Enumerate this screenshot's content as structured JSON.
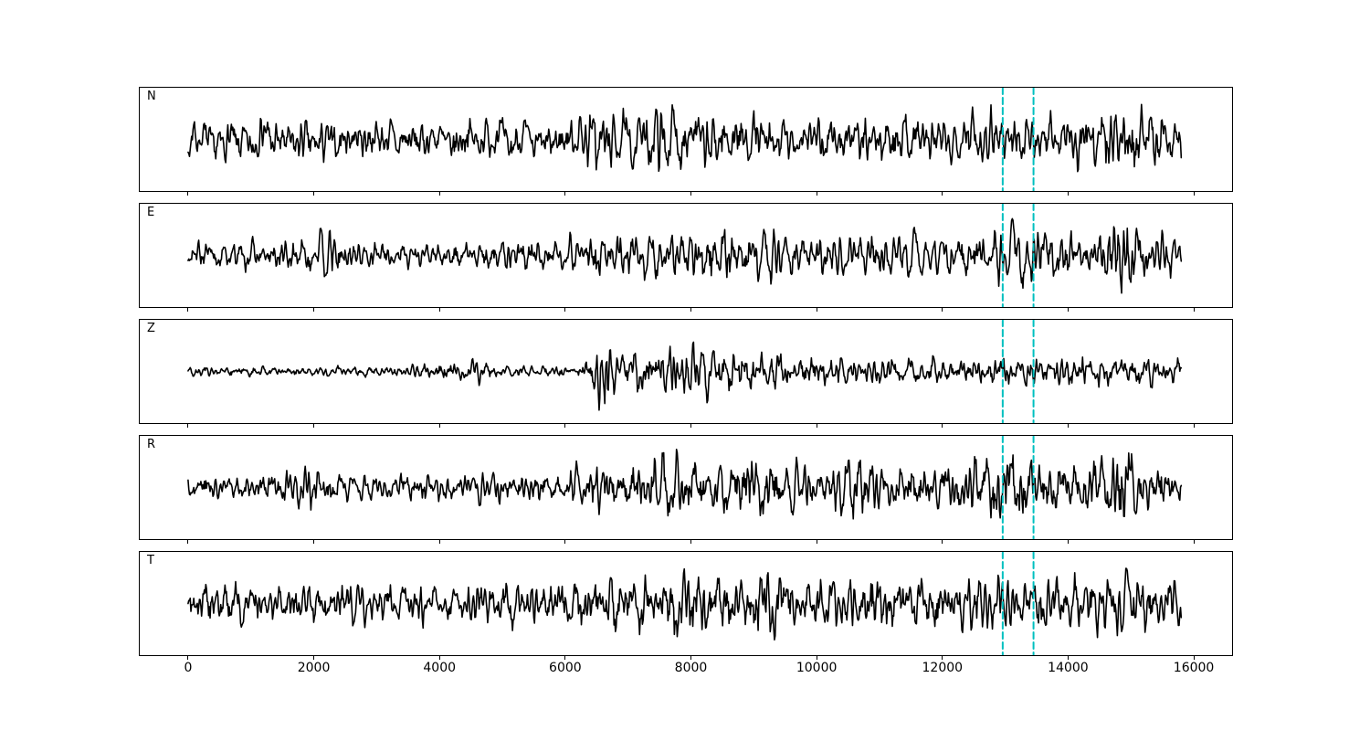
{
  "chart_data": {
    "type": "line",
    "title": "",
    "xlabel": "",
    "ylabel": "",
    "legend": null,
    "grid": false,
    "background": "#ffffff",
    "frame_color": "#000000",
    "panels": [
      {
        "label": "N",
        "seed": 7,
        "envelope": [
          [
            0,
            0.4
          ],
          [
            900,
            0.42
          ],
          [
            1300,
            0.55
          ],
          [
            1600,
            0.4
          ],
          [
            2100,
            0.58
          ],
          [
            2400,
            0.42
          ],
          [
            3200,
            0.45
          ],
          [
            4200,
            0.42
          ],
          [
            5200,
            0.45
          ],
          [
            6200,
            0.48
          ],
          [
            6500,
            0.8
          ],
          [
            6800,
            0.55
          ],
          [
            7300,
            0.6
          ],
          [
            7600,
            0.9
          ],
          [
            7900,
            0.6
          ],
          [
            8300,
            0.72
          ],
          [
            8800,
            0.55
          ],
          [
            9500,
            0.52
          ],
          [
            10500,
            0.52
          ],
          [
            11500,
            0.55
          ],
          [
            12300,
            0.55
          ],
          [
            12800,
            0.68
          ],
          [
            13200,
            0.72
          ],
          [
            13700,
            0.58
          ],
          [
            14300,
            0.62
          ],
          [
            14900,
            0.85
          ],
          [
            15300,
            0.7
          ],
          [
            15800,
            0.55
          ]
        ]
      },
      {
        "label": "E",
        "seed": 13,
        "envelope": [
          [
            0,
            0.28
          ],
          [
            1200,
            0.3
          ],
          [
            2350,
            0.55
          ],
          [
            2600,
            0.32
          ],
          [
            3800,
            0.3
          ],
          [
            5000,
            0.33
          ],
          [
            6000,
            0.38
          ],
          [
            6500,
            0.7
          ],
          [
            6900,
            0.48
          ],
          [
            7400,
            0.65
          ],
          [
            7900,
            0.48
          ],
          [
            8300,
            0.8
          ],
          [
            8700,
            0.5
          ],
          [
            9300,
            0.62
          ],
          [
            9800,
            0.45
          ],
          [
            10800,
            0.5
          ],
          [
            11800,
            0.48
          ],
          [
            12700,
            0.55
          ],
          [
            13050,
            0.92
          ],
          [
            13400,
            0.78
          ],
          [
            13900,
            0.5
          ],
          [
            14400,
            0.45
          ],
          [
            14900,
            0.92
          ],
          [
            15300,
            0.58
          ],
          [
            15800,
            0.45
          ]
        ]
      },
      {
        "label": "Z",
        "seed": 21,
        "envelope": [
          [
            0,
            0.1
          ],
          [
            1500,
            0.11
          ],
          [
            3500,
            0.12
          ],
          [
            4650,
            0.28
          ],
          [
            4900,
            0.12
          ],
          [
            6250,
            0.13
          ],
          [
            6450,
            0.65
          ],
          [
            6600,
            0.95
          ],
          [
            6900,
            0.6
          ],
          [
            7300,
            0.48
          ],
          [
            7700,
            0.6
          ],
          [
            8100,
            0.45
          ],
          [
            8500,
            0.52
          ],
          [
            9000,
            0.42
          ],
          [
            9600,
            0.36
          ],
          [
            10400,
            0.32
          ],
          [
            11400,
            0.28
          ],
          [
            12400,
            0.3
          ],
          [
            13200,
            0.34
          ],
          [
            14200,
            0.34
          ],
          [
            15000,
            0.32
          ],
          [
            15800,
            0.28
          ]
        ]
      },
      {
        "label": "R",
        "seed": 29,
        "envelope": [
          [
            0,
            0.28
          ],
          [
            900,
            0.3
          ],
          [
            2050,
            0.45
          ],
          [
            2300,
            0.3
          ],
          [
            3500,
            0.3
          ],
          [
            4800,
            0.33
          ],
          [
            5800,
            0.36
          ],
          [
            6400,
            0.5
          ],
          [
            7000,
            0.52
          ],
          [
            7600,
            0.95
          ],
          [
            7950,
            0.55
          ],
          [
            8500,
            0.6
          ],
          [
            8900,
            0.82
          ],
          [
            9300,
            0.5
          ],
          [
            10100,
            0.52
          ],
          [
            10900,
            0.72
          ],
          [
            11400,
            0.5
          ],
          [
            12200,
            0.52
          ],
          [
            12900,
            0.8
          ],
          [
            13250,
            0.88
          ],
          [
            13700,
            0.55
          ],
          [
            14300,
            0.6
          ],
          [
            14800,
            0.92
          ],
          [
            15300,
            0.6
          ],
          [
            15800,
            0.42
          ]
        ]
      },
      {
        "label": "T",
        "seed": 35,
        "envelope": [
          [
            0,
            0.42
          ],
          [
            1000,
            0.46
          ],
          [
            2200,
            0.46
          ],
          [
            3400,
            0.44
          ],
          [
            4600,
            0.46
          ],
          [
            5800,
            0.46
          ],
          [
            6600,
            0.72
          ],
          [
            7000,
            0.52
          ],
          [
            7800,
            0.88
          ],
          [
            8100,
            0.58
          ],
          [
            8400,
            0.92
          ],
          [
            8800,
            0.56
          ],
          [
            9200,
            0.92
          ],
          [
            9600,
            0.58
          ],
          [
            10300,
            0.56
          ],
          [
            10900,
            0.66
          ],
          [
            11600,
            0.56
          ],
          [
            12300,
            0.6
          ],
          [
            13100,
            0.6
          ],
          [
            13800,
            0.66
          ],
          [
            14400,
            0.7
          ],
          [
            14900,
            0.7
          ],
          [
            15400,
            0.64
          ],
          [
            15800,
            0.52
          ]
        ]
      }
    ],
    "x_axis": {
      "tick_values": [
        0,
        2000,
        4000,
        6000,
        8000,
        10000,
        12000,
        14000,
        16000
      ],
      "tick_labels": [
        "0",
        "2000",
        "4000",
        "6000",
        "8000",
        "10000",
        "12000",
        "14000",
        "16000"
      ],
      "xlim": [
        -769,
        16609
      ]
    },
    "trace": {
      "x_start": 0,
      "x_end": 15800,
      "color": "#000000",
      "linewidth": 1.6,
      "points": 1400
    },
    "markers": {
      "type": "vline",
      "positions": [
        12960,
        13450
      ],
      "color": "#00bfbf",
      "linestyle": "dashed",
      "dash": [
        7,
        4
      ],
      "linewidth": 2
    }
  }
}
